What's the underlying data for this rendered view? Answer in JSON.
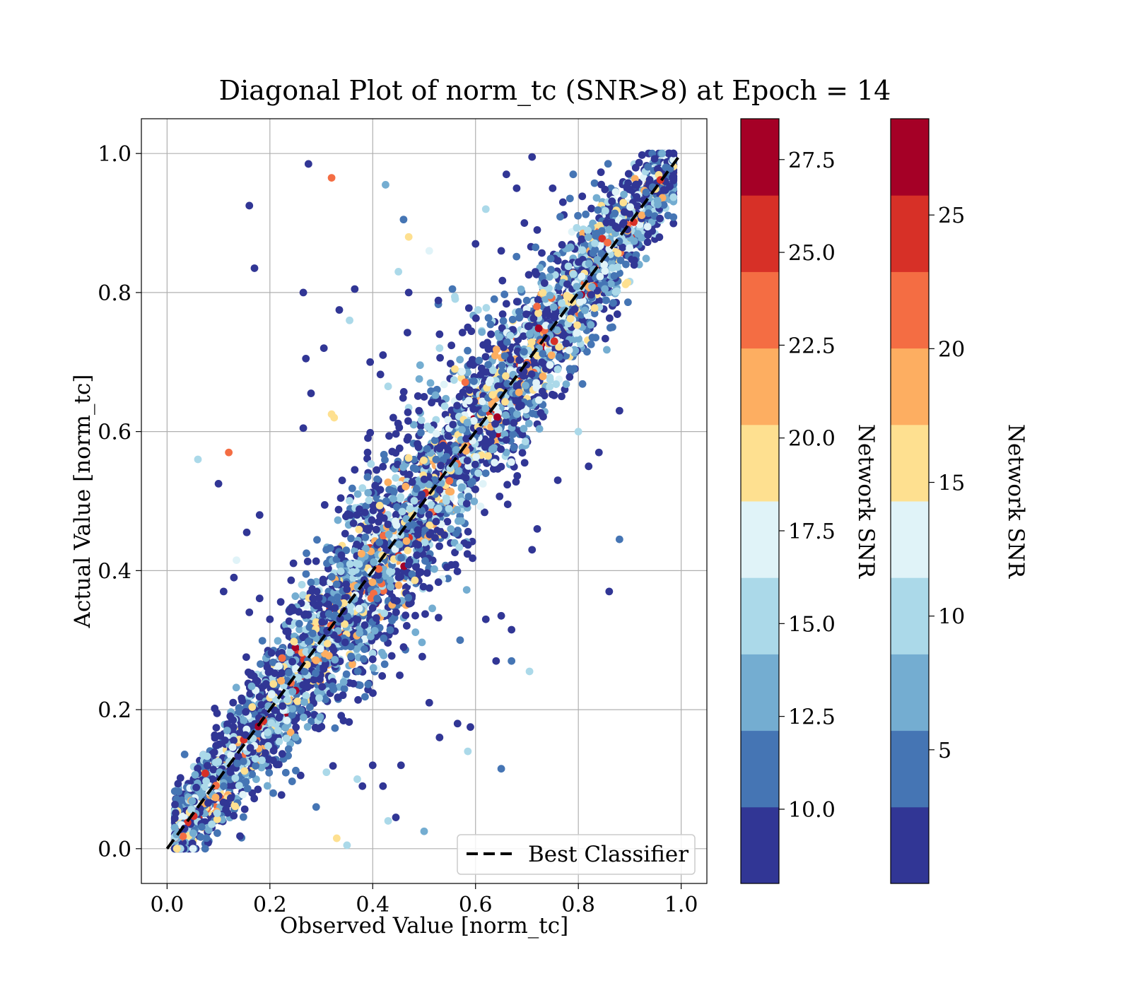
{
  "chart_data": {
    "type": "scatter",
    "title": "Diagonal Plot of norm_tc (SNR>8) at Epoch = 14",
    "xlabel": "Observed Value [norm_tc]",
    "ylabel": "Actual Value [norm_tc]",
    "xlim": [
      -0.05,
      1.05
    ],
    "ylim": [
      -0.05,
      1.05
    ],
    "xticks": [
      0.0,
      0.2,
      0.4,
      0.6,
      0.8,
      1.0
    ],
    "yticks": [
      0.0,
      0.2,
      0.4,
      0.6,
      0.8,
      1.0
    ],
    "xtick_labels": [
      "0.0",
      "0.2",
      "0.4",
      "0.6",
      "0.8",
      "1.0"
    ],
    "ytick_labels": [
      "0.0",
      "0.2",
      "0.4",
      "0.6",
      "0.8",
      "1.0"
    ],
    "grid": true,
    "legend": {
      "placement": "lower right",
      "entries": [
        "Best Classifier"
      ]
    },
    "reference_line": {
      "name": "Best Classifier",
      "x": [
        0.0,
        1.0
      ],
      "y": [
        0.0,
        1.0
      ],
      "style": "dashed",
      "color": "#000000"
    },
    "colormap": [
      "#313695",
      "#4575b4",
      "#74add1",
      "#abd9e9",
      "#e0f3f8",
      "#fee090",
      "#fdae61",
      "#f46d43",
      "#d73027",
      "#a50026"
    ],
    "colorbars": [
      {
        "label": "Network SNR",
        "range": [
          8.0,
          28.6
        ],
        "ticks": [
          10.0,
          12.5,
          15.0,
          17.5,
          20.0,
          22.5,
          25.0,
          27.5
        ],
        "tick_labels": [
          "10.0",
          "12.5",
          "15.0",
          "17.5",
          "20.0",
          "22.5",
          "25.0",
          "27.5"
        ]
      },
      {
        "label": "Network SNR",
        "range": [
          0.0,
          28.6
        ],
        "ticks": [
          5,
          10,
          15,
          20,
          25
        ],
        "tick_labels": [
          "5",
          "10",
          "15",
          "20",
          "25"
        ]
      }
    ],
    "points_outliers": [
      [
        0.275,
        0.985,
        9
      ],
      [
        0.32,
        0.965,
        23
      ],
      [
        0.16,
        0.925,
        9
      ],
      [
        0.17,
        0.835,
        10
      ],
      [
        0.265,
        0.8,
        9
      ],
      [
        0.425,
        0.955,
        14
      ],
      [
        0.47,
        0.88,
        19
      ],
      [
        0.51,
        0.86,
        18
      ],
      [
        0.46,
        0.905,
        11
      ],
      [
        0.365,
        0.805,
        10
      ],
      [
        0.335,
        0.775,
        10
      ],
      [
        0.355,
        0.76,
        15
      ],
      [
        0.305,
        0.72,
        9
      ],
      [
        0.27,
        0.705,
        9
      ],
      [
        0.28,
        0.655,
        9
      ],
      [
        0.32,
        0.625,
        19
      ],
      [
        0.325,
        0.62,
        19
      ],
      [
        0.265,
        0.605,
        9
      ],
      [
        0.12,
        0.57,
        23
      ],
      [
        0.06,
        0.56,
        15
      ],
      [
        0.1,
        0.525,
        9
      ],
      [
        0.18,
        0.48,
        10
      ],
      [
        0.155,
        0.455,
        9
      ],
      [
        0.135,
        0.415,
        18
      ],
      [
        0.13,
        0.39,
        10
      ],
      [
        0.11,
        0.37,
        9
      ],
      [
        0.88,
        0.445,
        11
      ],
      [
        0.71,
        0.43,
        9
      ],
      [
        0.65,
        0.335,
        9
      ],
      [
        0.67,
        0.315,
        9
      ],
      [
        0.62,
        0.33,
        10
      ],
      [
        0.705,
        0.255,
        15
      ],
      [
        0.67,
        0.27,
        12
      ],
      [
        0.64,
        0.27,
        9
      ],
      [
        0.565,
        0.18,
        10
      ],
      [
        0.59,
        0.175,
        9
      ],
      [
        0.65,
        0.115,
        12
      ],
      [
        0.585,
        0.14,
        15
      ],
      [
        0.5,
        0.025,
        13
      ],
      [
        0.43,
        0.04,
        15
      ],
      [
        0.35,
        0.005,
        15
      ],
      [
        0.33,
        0.015,
        19
      ],
      [
        0.445,
        0.045,
        9
      ],
      [
        0.53,
        0.72,
        15
      ],
      [
        0.555,
        0.805,
        11
      ],
      [
        0.6,
        0.87,
        9
      ],
      [
        0.62,
        0.92,
        15
      ],
      [
        0.68,
        0.95,
        9
      ],
      [
        0.71,
        0.995,
        9
      ],
      [
        0.66,
        0.97,
        9
      ],
      [
        0.39,
        0.57,
        10
      ],
      [
        0.365,
        0.545,
        10
      ],
      [
        0.395,
        0.7,
        9
      ],
      [
        0.42,
        0.71,
        9
      ],
      [
        0.88,
        0.63,
        9
      ],
      [
        0.84,
        0.57,
        10
      ],
      [
        0.8,
        0.6,
        15
      ],
      [
        0.76,
        0.53,
        9
      ],
      [
        0.72,
        0.46,
        9
      ],
      [
        0.57,
        0.3,
        11
      ],
      [
        0.51,
        0.21,
        9
      ],
      [
        0.53,
        0.16,
        10
      ],
      [
        0.455,
        0.12,
        9
      ],
      [
        0.4,
        0.12,
        9
      ],
      [
        0.42,
        0.09,
        10
      ],
      [
        0.37,
        0.1,
        15
      ],
      [
        0.38,
        0.09,
        10
      ],
      [
        0.29,
        0.06,
        11
      ],
      [
        0.31,
        0.11,
        15
      ],
      [
        0.2,
        0.33,
        9
      ],
      [
        0.18,
        0.36,
        9
      ],
      [
        0.16,
        0.34,
        10
      ],
      [
        0.49,
        0.63,
        10
      ],
      [
        0.5,
        0.65,
        10
      ],
      [
        0.43,
        0.665,
        16
      ],
      [
        0.44,
        0.62,
        10
      ],
      [
        0.605,
        0.775,
        15
      ],
      [
        0.63,
        0.74,
        10
      ],
      [
        0.75,
        0.95,
        9
      ],
      [
        0.77,
        0.93,
        10
      ],
      [
        0.79,
        0.97,
        12
      ],
      [
        0.86,
        0.37,
        9
      ],
      [
        0.82,
        0.55,
        10
      ],
      [
        0.45,
        0.83,
        15
      ],
      [
        0.47,
        0.8,
        10
      ],
      [
        0.53,
        0.74,
        9
      ],
      [
        0.585,
        0.75,
        9
      ],
      [
        0.65,
        0.86,
        9
      ],
      [
        0.695,
        0.9,
        9
      ],
      [
        0.72,
        0.89,
        10
      ]
    ],
    "point_count": 5000
  }
}
